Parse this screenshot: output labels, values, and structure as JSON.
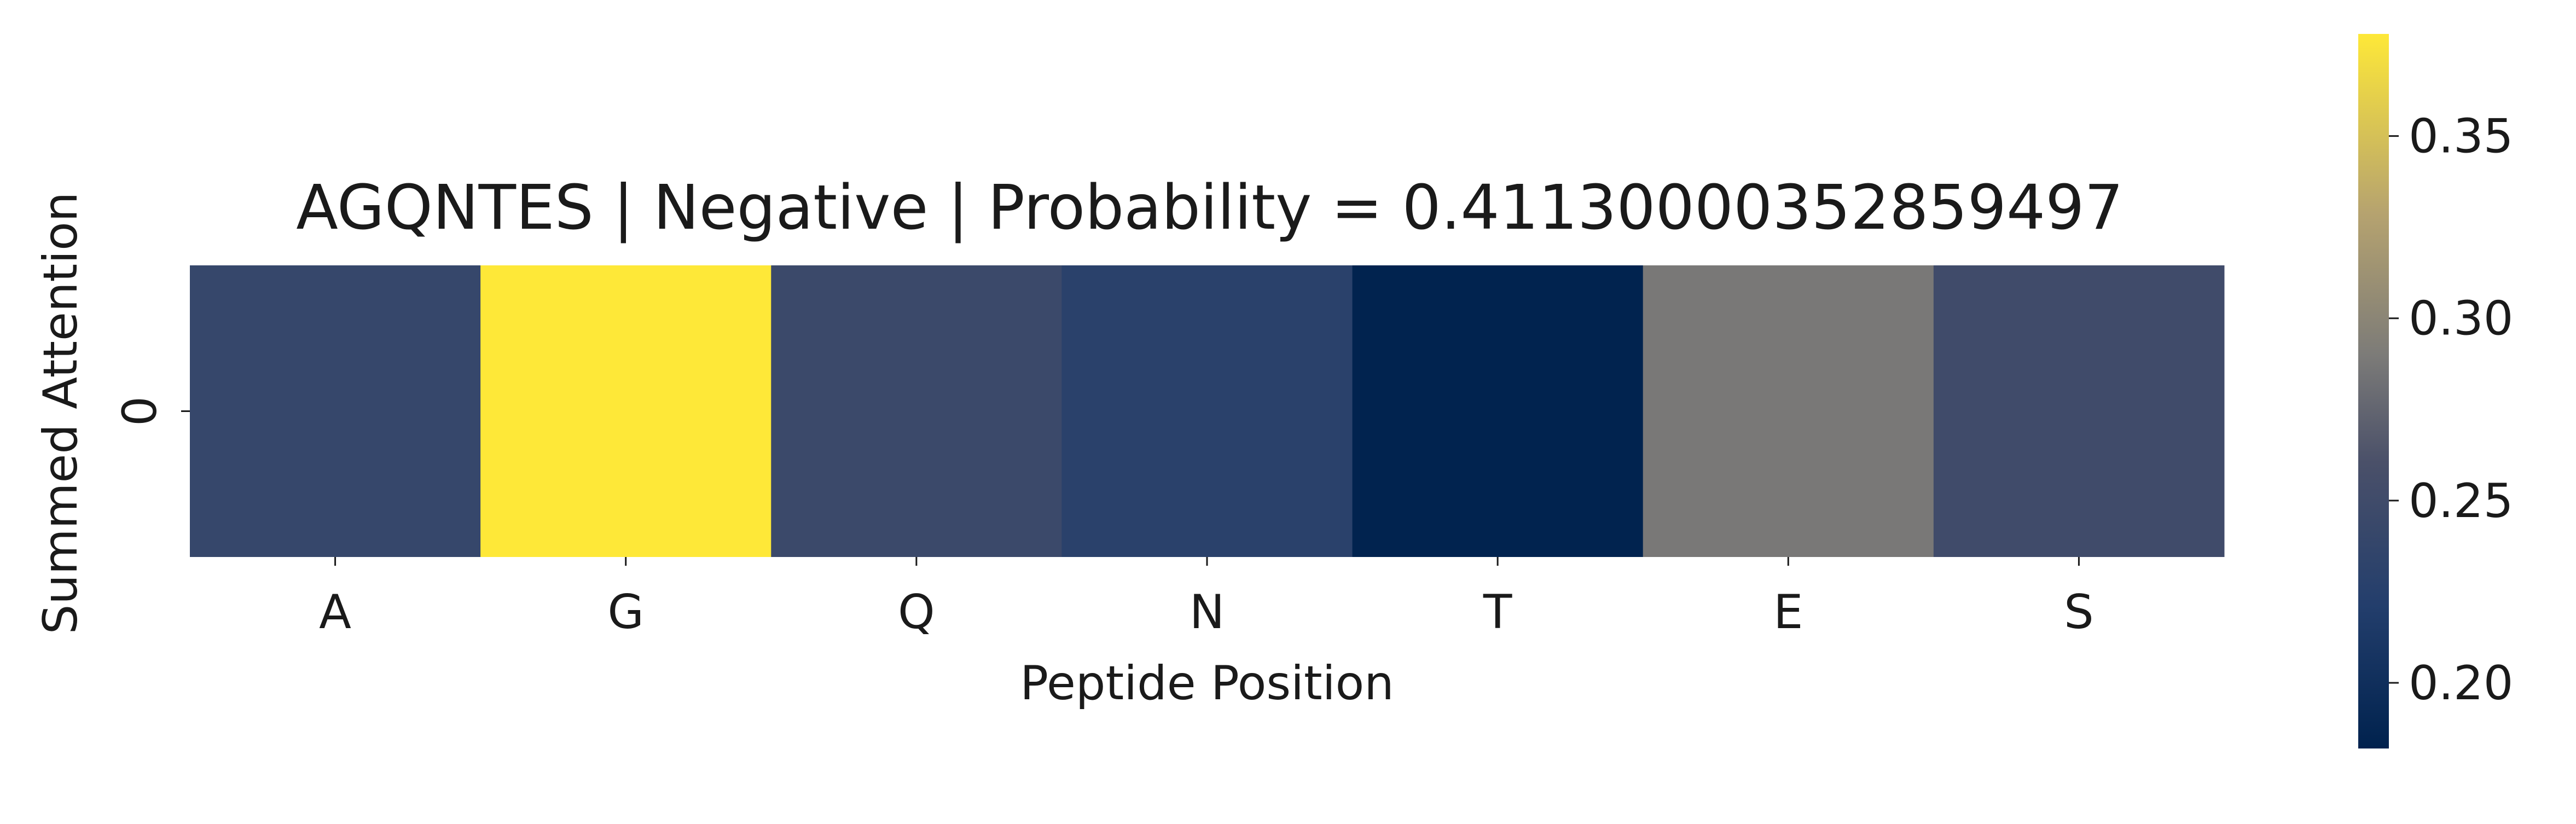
{
  "chart_data": {
    "type": "heatmap",
    "title": "AGQNTES | Negative | Probability = 0.41130000352859497",
    "xlabel": "Peptide Position",
    "ylabel": "Summed Attention",
    "x_categories": [
      "A",
      "G",
      "Q",
      "N",
      "T",
      "E",
      "S"
    ],
    "y_categories": [
      "0"
    ],
    "values": [
      [
        0.24,
        0.378,
        0.245,
        0.228,
        0.183,
        0.288,
        0.25
      ]
    ],
    "colormap": "cividis",
    "colorbar": {
      "range": [
        0.182,
        0.378
      ],
      "ticks": [
        0.2,
        0.25,
        0.3,
        0.35
      ],
      "tick_labels": [
        "0.20",
        "0.25",
        "0.30",
        "0.35"
      ]
    }
  }
}
